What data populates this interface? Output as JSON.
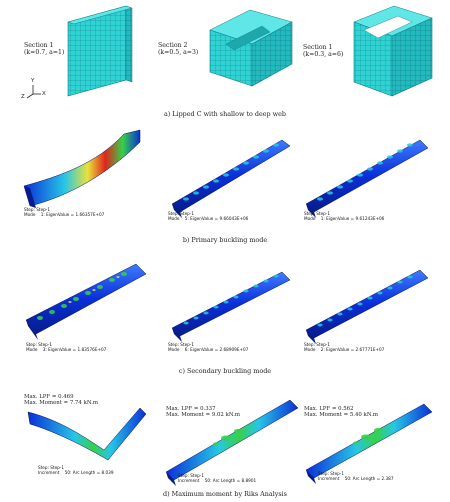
{
  "row_a": {
    "sections": [
      {
        "title": "Section 1",
        "params": "(k=0.7, a=1)"
      },
      {
        "title": "Section 2",
        "params": "(k=0.5, a=3)"
      },
      {
        "title": "Section 1",
        "params": "(k=0.3, a=6)"
      }
    ],
    "axis": {
      "y": "Y",
      "z": "Z",
      "x": "X"
    },
    "caption": "a) Lipped C with shallow to deep web"
  },
  "row_b": {
    "panels": [
      {
        "step": "Step: Step-1",
        "mode": "Mode",
        "value": "1: EigenValue = 1.66357E+07"
      },
      {
        "step": "Step: Step-1",
        "mode": "Mode",
        "value": "5: EigenValue = 9.66043E+06"
      },
      {
        "step": "Step: Step-1",
        "mode": "Mode",
        "value": "1: EigenValue = 9.61243E+06"
      }
    ],
    "caption": "b) Primary buckling mode"
  },
  "row_c": {
    "panels": [
      {
        "step": "Step: Step-1",
        "mode": "Mode",
        "value": "3: EigenValue = 1.83576E+07"
      },
      {
        "step": "Step: Step-1",
        "mode": "Mode",
        "value": "6: EigenValue = 2.68909E+07"
      },
      {
        "step": "Step: Step-1",
        "mode": "Mode",
        "value": "2: EigenValue = 2.67771E+07"
      }
    ],
    "caption": "c) Secondary buckling mode"
  },
  "row_d": {
    "panels": [
      {
        "lpf": "Max. LPF = 0.469",
        "moment": "Max. Moment = 7.74 kN.m",
        "step": "Step: Step-1",
        "inc": "Increment",
        "arc": "50: Arc Length = 8.039"
      },
      {
        "lpf": "Max. LPF = 0.337",
        "moment": "Max. Moment = 9.02 kN.m",
        "step": "Step: Step-1",
        "inc": "Increment",
        "arc": "50: Arc Length = 8.8901"
      },
      {
        "lpf": "Max. LPF = 0.562",
        "moment": "Max. Moment = 5.40 kN.m",
        "step": "Step: Step-1",
        "inc": "Increment",
        "arc": "50: Arc Length = 2.387"
      }
    ],
    "caption": "d) Maximum moment by Riks Analysis"
  },
  "colors": {
    "mesh_fill": "#2fd3d3",
    "mesh_line": "#0e7f86",
    "contour_blue": "#0a2fd8",
    "contour_cyan": "#27c6e6",
    "contour_green": "#35d14a",
    "contour_yellow": "#e8e23a",
    "contour_red": "#e0241c"
  }
}
